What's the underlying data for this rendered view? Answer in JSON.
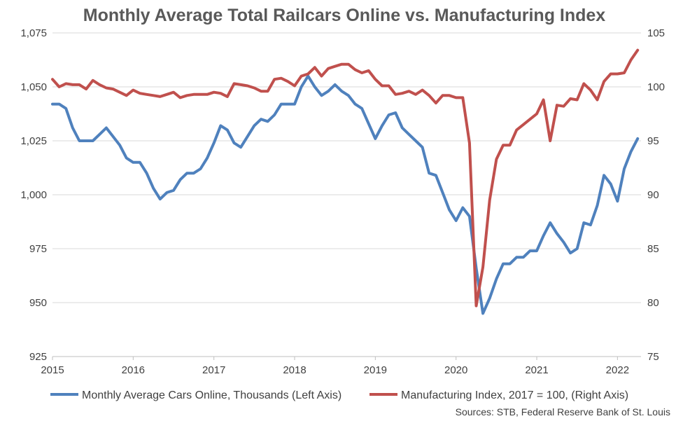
{
  "chart_data": {
    "type": "line",
    "title": "Monthly Average Total Railcars Online vs. Manufacturing Index",
    "source": "Sources:  STB, Federal Reserve Bank of St. Louis",
    "x_ticks": [
      "2015",
      "2016",
      "2017",
      "2018",
      "2019",
      "2020",
      "2021",
      "2022"
    ],
    "x_start": "2015-01",
    "x_end_label": "2022",
    "ylim_left": [
      925,
      1075
    ],
    "yticks_left": [
      "925",
      "950",
      "975",
      "1,000",
      "1,025",
      "1,050",
      "1,075"
    ],
    "ylim_right": [
      75,
      105
    ],
    "yticks_right": [
      "75",
      "80",
      "85",
      "90",
      "95",
      "100",
      "105"
    ],
    "grid": "horizontal",
    "legend_position": "bottom",
    "series": [
      {
        "name": "Monthly Average Cars Online, Thousands (Left Axis)",
        "axis": "left",
        "color": "#4f81bd",
        "values": [
          1042,
          1042,
          1040,
          1031,
          1025,
          1025,
          1025,
          1028,
          1031,
          1027,
          1023,
          1017,
          1015,
          1015,
          1010,
          1003,
          998,
          1001,
          1002,
          1007,
          1010,
          1010,
          1012,
          1017,
          1024,
          1032,
          1030,
          1024,
          1022,
          1027,
          1032,
          1035,
          1034,
          1037,
          1042,
          1042,
          1042,
          1050,
          1055,
          1050,
          1046,
          1048,
          1051,
          1048,
          1046,
          1042,
          1040,
          1033,
          1026,
          1032,
          1037,
          1038,
          1031,
          1028,
          1025,
          1022,
          1010,
          1009,
          1001,
          993,
          988,
          994,
          990,
          966,
          945,
          952,
          961,
          968,
          968,
          971,
          971,
          974,
          974,
          981,
          987,
          982,
          978,
          973,
          975,
          987,
          986,
          995,
          1009,
          1005,
          997,
          1012,
          1020,
          1026
        ]
      },
      {
        "name": "Manufacturing Index, 2017 = 100, (Right Axis)",
        "axis": "right",
        "color": "#c0504d",
        "values": [
          100.7,
          100.0,
          100.3,
          100.2,
          100.2,
          99.8,
          100.6,
          100.2,
          99.9,
          99.8,
          99.5,
          99.2,
          99.7,
          99.4,
          99.3,
          99.2,
          99.1,
          99.3,
          99.5,
          99.0,
          99.2,
          99.3,
          99.3,
          99.3,
          99.5,
          99.4,
          99.1,
          100.3,
          100.2,
          100.1,
          99.9,
          99.6,
          99.6,
          100.7,
          100.8,
          100.5,
          100.1,
          101.0,
          101.2,
          101.8,
          101.0,
          101.7,
          101.9,
          102.1,
          102.1,
          101.6,
          101.3,
          101.5,
          100.7,
          100.1,
          100.1,
          99.3,
          99.4,
          99.6,
          99.3,
          99.7,
          99.2,
          98.5,
          99.2,
          99.2,
          99.0,
          99.0,
          94.8,
          79.7,
          83.3,
          89.5,
          93.3,
          94.6,
          94.6,
          96.0,
          96.5,
          97.0,
          97.5,
          98.8,
          95.0,
          98.3,
          98.2,
          98.9,
          98.8,
          100.3,
          99.7,
          98.8,
          100.5,
          101.2,
          101.2,
          101.3,
          102.5,
          103.4
        ]
      }
    ]
  }
}
